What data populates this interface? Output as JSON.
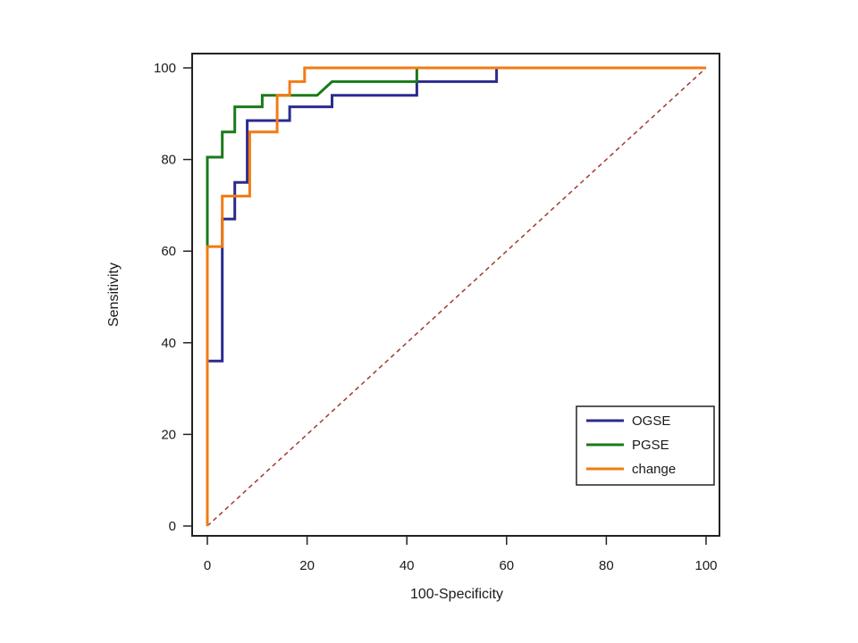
{
  "chart_data": {
    "type": "line",
    "title": "",
    "xlabel": "100-Specificity",
    "ylabel": "Sensitivity",
    "xlim": [
      0,
      100
    ],
    "ylim": [
      0,
      100
    ],
    "xticks": [
      0,
      20,
      40,
      60,
      80,
      100
    ],
    "yticks": [
      0,
      20,
      40,
      60,
      80,
      100
    ],
    "grid": false,
    "legend_position": "bottom-right",
    "series": [
      {
        "name": "OGSE",
        "color": "#2b2b8f",
        "style": "step",
        "points": [
          [
            0,
            0
          ],
          [
            0,
            36
          ],
          [
            3,
            36
          ],
          [
            3,
            67
          ],
          [
            5.5,
            67
          ],
          [
            5.5,
            75
          ],
          [
            8,
            75
          ],
          [
            8,
            88.5
          ],
          [
            14,
            88.5
          ],
          [
            16.5,
            88.5
          ],
          [
            16.5,
            91.5
          ],
          [
            25,
            91.5
          ],
          [
            25,
            94
          ],
          [
            42,
            94
          ],
          [
            42,
            97
          ],
          [
            58,
            97
          ],
          [
            58,
            100
          ],
          [
            100,
            100
          ]
        ]
      },
      {
        "name": "PGSE",
        "color": "#1a7a1a",
        "style": "step",
        "points": [
          [
            0,
            0
          ],
          [
            0,
            80.5
          ],
          [
            3,
            80.5
          ],
          [
            3,
            86
          ],
          [
            5.5,
            86
          ],
          [
            5.5,
            91.5
          ],
          [
            11,
            91.5
          ],
          [
            11,
            94
          ],
          [
            22,
            94
          ],
          [
            25,
            97
          ],
          [
            42,
            97
          ],
          [
            42,
            100
          ],
          [
            100,
            100
          ]
        ]
      },
      {
        "name": "change",
        "color": "#f27b13",
        "style": "step",
        "points": [
          [
            0,
            0
          ],
          [
            0,
            61
          ],
          [
            3,
            61
          ],
          [
            3,
            72
          ],
          [
            8.5,
            72
          ],
          [
            8.5,
            86
          ],
          [
            14,
            86
          ],
          [
            14,
            94
          ],
          [
            16.5,
            94
          ],
          [
            16.5,
            97
          ],
          [
            19.5,
            97
          ],
          [
            19.5,
            100
          ],
          [
            100,
            100
          ]
        ]
      }
    ],
    "reference_line": {
      "name": "chance diagonal",
      "color": "#a0392d",
      "dashed": true,
      "points": [
        [
          0,
          0
        ],
        [
          100,
          100
        ]
      ]
    }
  }
}
